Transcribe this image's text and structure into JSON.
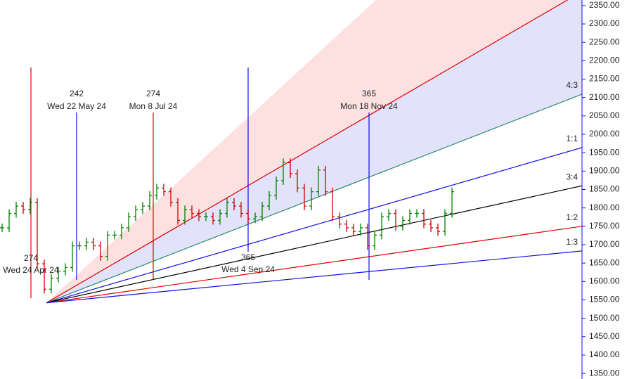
{
  "chart_data": {
    "type": "price-bars",
    "values": [
      1746,
      1785,
      1805,
      1795,
      1815,
      1648,
      1579,
      1609,
      1628,
      1638,
      1697,
      1697,
      1707,
      1697,
      1668,
      1726,
      1726,
      1746,
      1776,
      1795,
      1805,
      1834,
      1854,
      1844,
      1815,
      1766,
      1795,
      1785,
      1776,
      1776,
      1766,
      1785,
      1815,
      1805,
      1785,
      1770,
      1776,
      1805,
      1834,
      1874,
      1923,
      1893,
      1854,
      1805,
      1844,
      1903,
      1844,
      1776,
      1756,
      1746,
      1736,
      1746,
      1697,
      1726,
      1776,
      1785,
      1750,
      1766,
      1785,
      1785,
      1756,
      1746,
      1736,
      1785,
      1844
    ],
    "up_color": "#008000",
    "down_color": "#d00000",
    "ylim": [
      1335,
      2365
    ],
    "yticks": [
      {
        "value": 1350,
        "label": "1350.00"
      },
      {
        "value": 1400,
        "label": "1400.00"
      },
      {
        "value": 1450,
        "label": "1450.00"
      },
      {
        "value": 1500,
        "label": "1500.00"
      },
      {
        "value": 1550,
        "label": "1550.00"
      },
      {
        "value": 1600,
        "label": "1600.00"
      },
      {
        "value": 1650,
        "label": "1650.00"
      },
      {
        "value": 1700,
        "label": "1700.00"
      },
      {
        "value": 1750,
        "label": "1750.00"
      },
      {
        "value": 1800,
        "label": "1800.00"
      },
      {
        "value": 1850,
        "label": "1850.00"
      },
      {
        "value": 1900,
        "label": "1900.00"
      },
      {
        "value": 1950,
        "label": "1950.00"
      },
      {
        "value": 2000,
        "label": "2000.00"
      },
      {
        "value": 2050,
        "label": "2050.00"
      },
      {
        "value": 2100,
        "label": "2100.00"
      },
      {
        "value": 2150,
        "label": "2150.00"
      },
      {
        "value": 2200,
        "label": "2200.00"
      },
      {
        "value": 2250,
        "label": "2250.00"
      },
      {
        "value": 2300,
        "label": "2300.00"
      },
      {
        "value": 2350,
        "label": "2350.00"
      }
    ],
    "fan": {
      "origin": 1542,
      "lines": [
        {
          "end": 2880,
          "color": null
        },
        {
          "end": 2388,
          "color": "#e00000"
        },
        {
          "label": "4:3",
          "end": 2109,
          "color": "#2a8a6a"
        },
        {
          "label": "1:1",
          "end": 1964,
          "color": "#1010e0"
        },
        {
          "label": "3:4",
          "end": 1860,
          "color": "#000000"
        },
        {
          "label": "1:2",
          "end": 1750,
          "color": "#e00000"
        },
        {
          "label": "1:3",
          "end": 1683,
          "color": "#1010e0"
        }
      ],
      "fills": [
        "#fde0e0",
        "#e2e2fb"
      ]
    },
    "markers": [
      {
        "count": "274",
        "date": "Wed 24 Apr 24",
        "color": "#e00000"
      },
      {
        "count": "242",
        "date": "Wed 22 May 24",
        "color": "#1010e0"
      },
      {
        "count": "274",
        "date": "Mon 8 Jul 24",
        "color": "#e00000"
      },
      {
        "count": "365",
        "date": "Wed 4 Sep 24",
        "color": "#1010e0"
      },
      {
        "count": "365",
        "date": "Mon 18 Nov 24",
        "color": "#1010e0"
      }
    ]
  }
}
